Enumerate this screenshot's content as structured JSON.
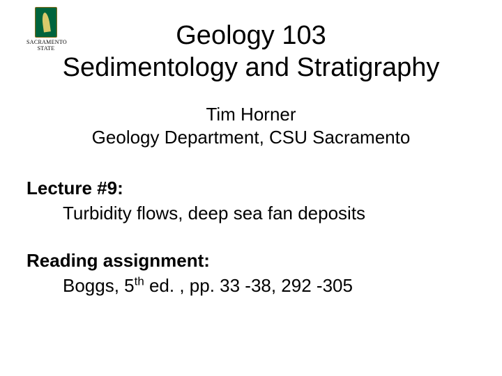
{
  "logo": {
    "line1": "SACRAMENTO",
    "line2": "STATE",
    "shield_bg": "#00643c",
    "shield_border": "#8a6d1a",
    "leaf_color": "#d9c96a"
  },
  "title": {
    "line1": "Geology 103",
    "line2": "Sedimentology and Stratigraphy",
    "fontsize": 38,
    "color": "#000000"
  },
  "author": {
    "name": "Tim Horner",
    "affiliation": "Geology Department, CSU Sacramento",
    "fontsize": 26
  },
  "content": {
    "lecture_label": "Lecture #9:",
    "lecture_topic": "Turbidity flows, deep sea fan deposits",
    "reading_label": "Reading assignment:",
    "reading_prefix": "Boggs, 5",
    "reading_ordinal": "th",
    "reading_suffix": " ed. , pp. 33 -38, 292 -305",
    "fontsize": 26
  },
  "background_color": "#ffffff"
}
